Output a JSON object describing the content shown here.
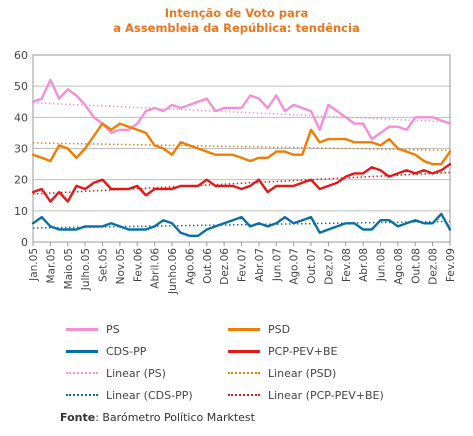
{
  "chart_data": {
    "type": "line",
    "title_lines": [
      "Intenção de Voto para",
      "a Assembleia da República: tendência"
    ],
    "xlabel": "",
    "ylabel": "",
    "ylim": [
      0,
      60
    ],
    "yticks": [
      0,
      10,
      20,
      30,
      40,
      50,
      60
    ],
    "grid": true,
    "x_tick_labels": [
      "Jan.05",
      "Mar.05",
      "Maio.05",
      "Julho.05",
      "Set.05",
      "Nov.05",
      "Fev.06",
      "Abril.06",
      "Junho.06",
      "Ago.06",
      "Out.06",
      "Dez.06",
      "Fev.07",
      "Abr.07",
      "Jun.07",
      "Ago.07",
      "Out.07",
      "Dez.07",
      "Fev.08",
      "Abr.08",
      "Jun.08",
      "Ago.08",
      "Out.08",
      "Dez.08",
      "Fev.09"
    ],
    "n_points": 49,
    "series": [
      {
        "name": "PS",
        "color": "#f48fd6",
        "values": [
          45,
          46,
          52,
          46,
          49,
          47,
          44,
          40,
          38,
          35,
          36,
          36,
          38,
          42,
          43,
          42,
          44,
          43,
          44,
          45,
          46,
          42,
          43,
          43,
          43,
          47,
          46,
          43,
          47,
          42,
          44,
          43,
          42,
          36,
          44,
          42,
          40,
          38,
          38,
          33,
          35,
          37,
          37,
          36,
          40,
          40,
          40,
          39,
          38
        ]
      },
      {
        "name": "PSD",
        "color": "#f07c00",
        "values": [
          28,
          27,
          26,
          31,
          30,
          27,
          30,
          34,
          38,
          36,
          38,
          37,
          36,
          35,
          31,
          30,
          28,
          32,
          31,
          30,
          29,
          28,
          28,
          28,
          27,
          26,
          27,
          27,
          29,
          29,
          28,
          28,
          36,
          32,
          33,
          33,
          33,
          32,
          32,
          32,
          31,
          33,
          30,
          29,
          28,
          26,
          25,
          25,
          29
        ]
      },
      {
        "name": "CDS-PP",
        "color": "#0a6fa8",
        "values": [
          6,
          8,
          5,
          4,
          4,
          4,
          5,
          5,
          5,
          6,
          5,
          4,
          4,
          4,
          5,
          7,
          6,
          3,
          2,
          2,
          4,
          5,
          6,
          7,
          8,
          5,
          6,
          5,
          6,
          8,
          6,
          7,
          8,
          3,
          4,
          5,
          6,
          6,
          4,
          4,
          7,
          7,
          5,
          6,
          7,
          6,
          6,
          9,
          4
        ]
      },
      {
        "name": "PCP-PEV+BE",
        "color": "#e31818",
        "values": [
          16,
          17,
          13,
          16,
          13,
          18,
          17,
          19,
          20,
          17,
          17,
          17,
          18,
          15,
          17,
          17,
          17,
          18,
          18,
          18,
          20,
          18,
          18,
          18,
          17,
          18,
          20,
          16,
          18,
          18,
          18,
          19,
          20,
          17,
          18,
          19,
          21,
          22,
          22,
          24,
          23,
          21,
          22,
          23,
          22,
          23,
          22,
          23,
          25
        ]
      }
    ],
    "trendlines": [
      {
        "name": "Linear (PS)",
        "color": "#f48fd6",
        "start": 44.7,
        "end": 38.5
      },
      {
        "name": "Linear (PSD)",
        "color": "#f07c00",
        "start": 31.8,
        "end": 29.4
      },
      {
        "name": "Linear (CDS-PP)",
        "color": "#0a6fa8",
        "start": 4.5,
        "end": 6.6
      },
      {
        "name": "Linear (PCP-PEV+BE)",
        "color": "#e31818",
        "start": 15.4,
        "end": 22.3
      }
    ]
  },
  "legend": {
    "rows": [
      [
        {
          "label": "PS",
          "color": "#f48fd6",
          "style": "solid"
        },
        {
          "label": "PSD",
          "color": "#f07c00",
          "style": "solid"
        }
      ],
      [
        {
          "label": "CDS-PP",
          "color": "#0a6fa8",
          "style": "solid"
        },
        {
          "label": "PCP-PEV+BE",
          "color": "#e31818",
          "style": "solid"
        }
      ],
      [
        {
          "label": "Linear (PS)",
          "color": "#f48fd6",
          "style": "dotted"
        },
        {
          "label": "Linear (PSD)",
          "color": "#f07c00",
          "style": "dotted"
        }
      ],
      [
        {
          "label": "Linear (CDS-PP)",
          "color": "#0a6fa8",
          "style": "dotted"
        },
        {
          "label": "Linear (PCP-PEV+BE)",
          "color": "#e31818",
          "style": "dotted"
        }
      ]
    ]
  },
  "source": {
    "label": "Fonte",
    "text": ": Barómetro Político Marktest"
  }
}
